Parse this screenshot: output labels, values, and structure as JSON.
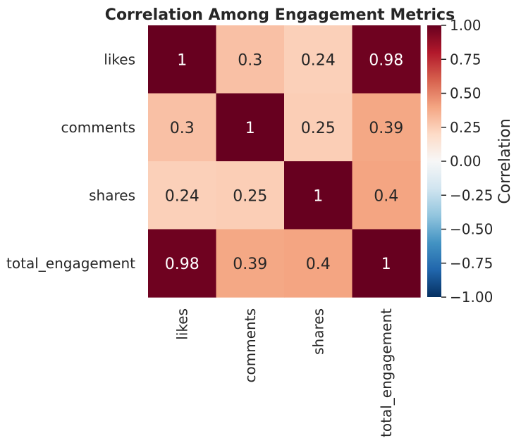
{
  "chart_data": {
    "type": "heatmap",
    "title": "Correlation Among Engagement Metrics",
    "rows": [
      "likes",
      "comments",
      "shares",
      "total_engagement"
    ],
    "columns": [
      "likes",
      "comments",
      "shares",
      "total_engagement"
    ],
    "values": [
      [
        1.0,
        0.3,
        0.24,
        0.98
      ],
      [
        0.3,
        1.0,
        0.25,
        0.39
      ],
      [
        0.24,
        0.25,
        1.0,
        0.4
      ],
      [
        0.98,
        0.39,
        0.4,
        1.0
      ]
    ],
    "annotations": [
      [
        "1",
        "0.3",
        "0.24",
        "0.98"
      ],
      [
        "0.3",
        "1",
        "0.25",
        "0.39"
      ],
      [
        "0.24",
        "0.25",
        "1",
        "0.4"
      ],
      [
        "0.98",
        "0.39",
        "0.4",
        "1"
      ]
    ],
    "colorbar": {
      "label": "Correlation",
      "range": [
        -1.0,
        1.0
      ],
      "ticks": [
        1.0,
        0.75,
        0.5,
        0.25,
        0.0,
        -0.25,
        -0.5,
        -0.75,
        -1.0
      ],
      "tick_labels": [
        "1.00",
        "0.75",
        "0.50",
        "0.25",
        "0.00",
        "−0.25",
        "−0.50",
        "−0.75",
        "−1.00"
      ],
      "colormap": "RdBu_r"
    },
    "colors": {
      "text_on_dark": "#ffffff",
      "text_on_light": "#262626",
      "ink": "#262626"
    }
  }
}
